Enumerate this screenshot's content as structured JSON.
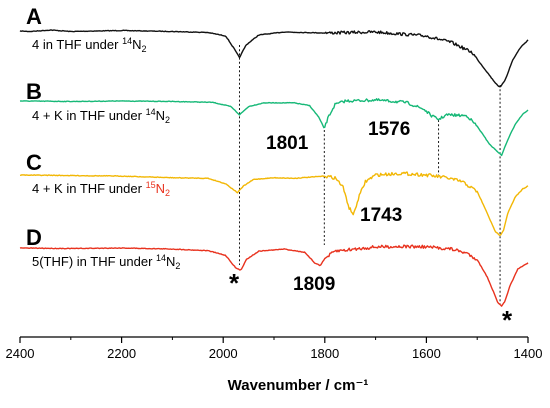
{
  "chart_data": {
    "type": "line",
    "xlabel": "Wavenumber / cm⁻¹",
    "xlim": [
      2400,
      1400
    ],
    "x_ticks": [
      "2400",
      "2200",
      "2000",
      "1800",
      "1600",
      "1400"
    ],
    "x_tick_values": [
      2400,
      2200,
      2000,
      1800,
      1600,
      1400
    ],
    "series": [
      {
        "panel": "A",
        "color": "#111111",
        "label_main": "4 in THF under ",
        "label_iso": "14",
        "label_gas": "N",
        "label_sub": "2",
        "iso_color": "#000000",
        "bands": [
          1968,
          1455
        ],
        "points": [
          [
            2400,
            0.02
          ],
          [
            2380,
            0.03
          ],
          [
            2340,
            0.0
          ],
          [
            2300,
            0.03
          ],
          [
            2200,
            0.01
          ],
          [
            2100,
            0.03
          ],
          [
            2030,
            0.05
          ],
          [
            1995,
            0.12
          ],
          [
            1980,
            0.35
          ],
          [
            1968,
            0.55
          ],
          [
            1955,
            0.3
          ],
          [
            1930,
            0.1
          ],
          [
            1880,
            0.04
          ],
          [
            1800,
            0.06
          ],
          [
            1700,
            0.04
          ],
          [
            1600,
            0.12
          ],
          [
            1550,
            0.25
          ],
          [
            1510,
            0.45
          ],
          [
            1480,
            0.85
          ],
          [
            1465,
            1.05
          ],
          [
            1455,
            1.15
          ],
          [
            1445,
            1.0
          ],
          [
            1430,
            0.6
          ],
          [
            1415,
            0.35
          ],
          [
            1400,
            0.2
          ]
        ]
      },
      {
        "panel": "B",
        "color": "#16b877",
        "label_main": "4 + K in THF under ",
        "label_iso": "14",
        "label_gas": "N",
        "label_sub": "2",
        "iso_color": "#000000",
        "bands": [
          1968,
          1801,
          1576,
          1455
        ],
        "points": [
          [
            2400,
            0.0
          ],
          [
            2300,
            0.01
          ],
          [
            2200,
            0.0
          ],
          [
            2100,
            0.01
          ],
          [
            2020,
            0.03
          ],
          [
            1985,
            0.12
          ],
          [
            1968,
            0.3
          ],
          [
            1950,
            0.12
          ],
          [
            1920,
            0.04
          ],
          [
            1860,
            0.04
          ],
          [
            1830,
            0.1
          ],
          [
            1812,
            0.35
          ],
          [
            1801,
            0.6
          ],
          [
            1793,
            0.35
          ],
          [
            1780,
            0.08
          ],
          [
            1760,
            0.0
          ],
          [
            1700,
            -0.02
          ],
          [
            1640,
            0.03
          ],
          [
            1605,
            0.18
          ],
          [
            1590,
            0.32
          ],
          [
            1576,
            0.4
          ],
          [
            1560,
            0.3
          ],
          [
            1520,
            0.32
          ],
          [
            1500,
            0.55
          ],
          [
            1475,
            0.95
          ],
          [
            1460,
            1.1
          ],
          [
            1452,
            1.18
          ],
          [
            1440,
            0.85
          ],
          [
            1425,
            0.5
          ],
          [
            1410,
            0.28
          ],
          [
            1400,
            0.2
          ]
        ]
      },
      {
        "panel": "C",
        "color": "#f2b705",
        "label_main": "4 + K in THF under ",
        "label_iso": "15",
        "label_gas": "N",
        "label_sub": "2",
        "iso_color": "#e8321e",
        "bands": [
          1968,
          1743,
          1455
        ],
        "points": [
          [
            2400,
            0.0
          ],
          [
            2300,
            0.01
          ],
          [
            2200,
            0.02
          ],
          [
            2100,
            0.05
          ],
          [
            2030,
            0.06
          ],
          [
            1995,
            0.16
          ],
          [
            1972,
            0.32
          ],
          [
            1960,
            0.2
          ],
          [
            1940,
            0.08
          ],
          [
            1900,
            0.05
          ],
          [
            1860,
            0.06
          ],
          [
            1800,
            0.02
          ],
          [
            1780,
            0.05
          ],
          [
            1765,
            0.2
          ],
          [
            1752,
            0.6
          ],
          [
            1743,
            0.72
          ],
          [
            1733,
            0.4
          ],
          [
            1720,
            0.12
          ],
          [
            1700,
            0.0
          ],
          [
            1650,
            -0.03
          ],
          [
            1600,
            0.0
          ],
          [
            1560,
            0.05
          ],
          [
            1530,
            0.12
          ],
          [
            1500,
            0.3
          ],
          [
            1480,
            0.7
          ],
          [
            1465,
            1.02
          ],
          [
            1455,
            1.1
          ],
          [
            1448,
            1.0
          ],
          [
            1440,
            0.7
          ],
          [
            1425,
            0.4
          ],
          [
            1410,
            0.25
          ],
          [
            1400,
            0.2
          ]
        ]
      },
      {
        "panel": "D",
        "color": "#e8321e",
        "label_main": "5(THF) in THF under ",
        "label_iso": "14",
        "label_gas": "N",
        "label_sub": "2",
        "iso_color": "#000000",
        "bands": [
          1968,
          1809,
          1455
        ],
        "points": [
          [
            2400,
            0.0
          ],
          [
            2300,
            0.01
          ],
          [
            2200,
            0.0
          ],
          [
            2100,
            0.02
          ],
          [
            2030,
            0.05
          ],
          [
            1995,
            0.14
          ],
          [
            1975,
            0.38
          ],
          [
            1965,
            0.42
          ],
          [
            1955,
            0.22
          ],
          [
            1930,
            0.06
          ],
          [
            1880,
            0.02
          ],
          [
            1840,
            0.08
          ],
          [
            1820,
            0.28
          ],
          [
            1809,
            0.33
          ],
          [
            1800,
            0.2
          ],
          [
            1780,
            0.06
          ],
          [
            1700,
            -0.02
          ],
          [
            1650,
            -0.03
          ],
          [
            1600,
            -0.02
          ],
          [
            1550,
            0.02
          ],
          [
            1520,
            0.1
          ],
          [
            1500,
            0.22
          ],
          [
            1480,
            0.55
          ],
          [
            1470,
            0.78
          ],
          [
            1460,
            1.02
          ],
          [
            1452,
            1.1
          ],
          [
            1445,
            1.0
          ],
          [
            1435,
            0.7
          ],
          [
            1420,
            0.4
          ],
          [
            1400,
            0.28
          ]
        ]
      }
    ],
    "guide_wavenumbers": [
      1968,
      1801,
      1576,
      1455
    ],
    "annotations": [
      {
        "text": "1801",
        "kind": "peak"
      },
      {
        "text": "1576",
        "kind": "peak"
      },
      {
        "text": "1743",
        "kind": "peak"
      },
      {
        "text": "1809",
        "kind": "peak"
      },
      {
        "text": "*",
        "kind": "star"
      },
      {
        "text": "*",
        "kind": "star"
      }
    ]
  }
}
